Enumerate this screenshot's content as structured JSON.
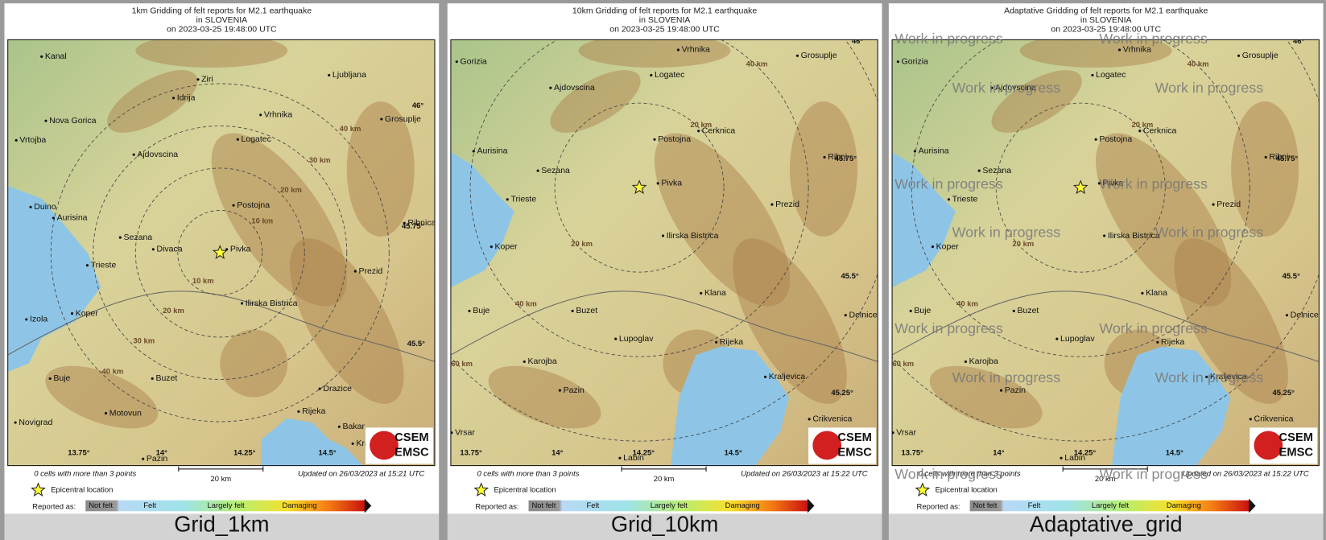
{
  "panels": [
    {
      "title": [
        "1km Gridding of felt reports for M2.1 earthquake",
        "in SLOVENIA",
        "on  2023-03-25 19:48:00 UTC"
      ],
      "places": [
        "Kanal",
        "Ziri",
        "Ljubljana",
        "Idrija",
        "Nova Gorica",
        "Vrhnika",
        "Grosuplje",
        "Vrtojba",
        "Logatec",
        "Ajdovscina",
        "Postojna",
        "Duino",
        "Aurisina",
        "Sezana",
        "Divaca",
        "Pivka",
        "Trieste",
        "Prezid",
        "Ilirska Bistrica",
        "Izola",
        "Koper",
        "Buje",
        "Buzet",
        "Drazice",
        "Rijeka",
        "Motovun",
        "Novigrad",
        "Bakar",
        "Kra",
        "Ribnica",
        "Pazin"
      ],
      "distance_labels": [
        "10 km",
        "10 km",
        "20 km",
        "20 km",
        "30 km",
        "30 km",
        "40 km",
        "40 km"
      ],
      "lat_labels": [
        "46°",
        "45.75°",
        "45.5°"
      ],
      "lon_labels": [
        "13.75°",
        "14°",
        "14.25°",
        "14.5°"
      ],
      "watermarks": [],
      "footer": {
        "cells": "0 cells with more than 3 points",
        "scale": "20 km",
        "updated": "Updated on 26/03/2023 at 15:21 UTC",
        "epicenter": "Epicentral location",
        "reported": "Reported as:"
      },
      "legend": [
        "Not felt",
        "Felt",
        "Largely felt",
        "Damaging"
      ],
      "logo": [
        "CSEM",
        "EMSC"
      ],
      "caption": "Grid_1km"
    },
    {
      "title": [
        "10km Gridding of felt reports for M2.1 earthquake",
        "in SLOVENIA",
        "on  2023-03-25 19:48:00 UTC"
      ],
      "places": [
        "Gorizia",
        "Vrhnika",
        "Grosuplje",
        "Logatec",
        "Ajdovscina",
        "Cerknica",
        "Postojna",
        "Aurisina",
        "Ribni",
        "Sezana",
        "Pivka",
        "Trieste",
        "Prezid",
        "Ilirska Bistrica",
        "Koper",
        "Klana",
        "Buje",
        "Buzet",
        "Lupoglav",
        "Rijeka",
        "Karojba",
        "Kraljevica",
        "Pazin",
        "Crikvenica",
        "Vrsar",
        "Labin",
        "Delnice"
      ],
      "distance_labels": [
        "20 km",
        "20 km",
        "40 km",
        "40 km",
        "60 km"
      ],
      "lat_labels": [
        "46°",
        "45.75°",
        "45.5°",
        "45.25°"
      ],
      "lon_labels": [
        "13.75°",
        "14°",
        "14.25°",
        "14.5°"
      ],
      "watermarks": [],
      "footer": {
        "cells": "0 cells with more than 3 points",
        "scale": "20 km",
        "updated": "Updated on 26/03/2023 at 15:22 UTC",
        "epicenter": "Epicentral location",
        "reported": "Reported as:"
      },
      "legend": [
        "Not felt",
        "Felt",
        "Largely felt",
        "Damaging"
      ],
      "logo": [
        "CSEM",
        "EMSC"
      ],
      "caption": "Grid_10km"
    },
    {
      "title": [
        "Adaptative Gridding of felt reports for M2.1 earthquake",
        "in SLOVENIA",
        "on  2023-03-25 19:48:00 UTC"
      ],
      "places": [
        "Gorizia",
        "Vrhnika",
        "Grosuplje",
        "Logatec",
        "Ajdovscina",
        "Cerknica",
        "Postojna",
        "Aurisina",
        "Ribni",
        "Sezana",
        "Pivka",
        "Trieste",
        "Prezid",
        "Ilirska Bistrica",
        "Koper",
        "Klana",
        "Buje",
        "Buzet",
        "Lupoglav",
        "Rijeka",
        "Karojba",
        "Kraljevica",
        "Pazin",
        "Crikvenica",
        "Vrsar",
        "Labin",
        "Delnice"
      ],
      "distance_labels": [
        "20 km",
        "20 km",
        "40 km",
        "40 km",
        "60 km"
      ],
      "lat_labels": [
        "46°",
        "45.75°",
        "45.5°",
        "45.25°"
      ],
      "lon_labels": [
        "13.75°",
        "14°",
        "14.25°",
        "14.5°"
      ],
      "watermarks": [
        "Work in progress",
        "Work in progress",
        "Work in progress",
        "Work in progress",
        "Work in progress",
        "Work in progress",
        "Work in progress",
        "Work in progress",
        "Work in progress",
        "Work in progress",
        "Work in progress",
        "Work in progress",
        "Work in progress",
        "Work in progress"
      ],
      "footer": {
        "cells": "0 cells with more than 3 points",
        "scale": "20 km",
        "updated": "Updated on 26/03/2023 at 15:22 UTC",
        "epicenter": "Epicentral location",
        "reported": "Reported as:"
      },
      "legend": [
        "Not felt",
        "Felt",
        "Largely felt",
        "Damaging"
      ],
      "logo": [
        "CSEM",
        "EMSC"
      ],
      "caption": "Adaptative_grid"
    }
  ]
}
